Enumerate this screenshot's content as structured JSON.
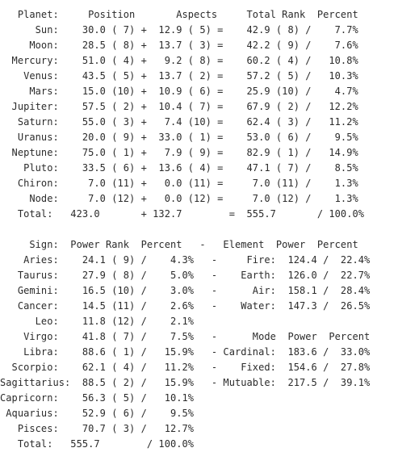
{
  "report": {
    "lines": [
      "   Planet:     Position       Aspects     Total Rank  Percent",
      "      Sun:    30.0 ( 7) +  12.9 ( 5) =    42.9 ( 8) /    7.7%",
      "     Moon:    28.5 ( 8) +  13.7 ( 3) =    42.2 ( 9) /    7.6%",
      "  Mercury:    51.0 ( 4) +   9.2 ( 8) =    60.2 ( 4) /   10.8%",
      "    Venus:    43.5 ( 5) +  13.7 ( 2) =    57.2 ( 5) /   10.3%",
      "     Mars:    15.0 (10) +  10.9 ( 6) =    25.9 (10) /    4.7%",
      "  Jupiter:    57.5 ( 2) +  10.4 ( 7) =    67.9 ( 2) /   12.2%",
      "   Saturn:    55.0 ( 3) +   7.4 (10) =    62.4 ( 3) /   11.2%",
      "   Uranus:    20.0 ( 9) +  33.0 ( 1) =    53.0 ( 6) /    9.5%",
      "  Neptune:    75.0 ( 1) +   7.9 ( 9) =    82.9 ( 1) /   14.9%",
      "    Pluto:    33.5 ( 6) +  13.6 ( 4) =    47.1 ( 7) /    8.5%",
      "   Chiron:     7.0 (11) +   0.0 (11) =     7.0 (11) /    1.3%",
      "     Node:     7.0 (12) +   0.0 (12) =     7.0 (12) /    1.3%",
      "   Total:   423.0       + 132.7        =  555.7       / 100.0%",
      "",
      "     Sign:  Power Rank  Percent   -   Element  Power  Percent",
      "    Aries:    24.1 ( 9) /    4.3%   -     Fire:  124.4 /  22.4%",
      "   Taurus:    27.9 ( 8) /    5.0%   -    Earth:  126.0 /  22.7%",
      "   Gemini:    16.5 (10) /    3.0%   -      Air:  158.1 /  28.4%",
      "   Cancer:    14.5 (11) /    2.6%   -    Water:  147.3 /  26.5%",
      "      Leo:    11.8 (12) /    2.1%",
      "    Virgo:    41.8 ( 7) /    7.5%   -      Mode  Power  Percent",
      "    Libra:    88.6 ( 1) /   15.9%   - Cardinal:  183.6 /  33.0%",
      "  Scorpio:    62.1 ( 4) /   11.2%   -    Fixed:  154.6 /  27.8%",
      "Sagittarius:  88.5 ( 2) /   15.9%   - Mutuable:  217.5 /  39.1%",
      "Capricorn:    56.3 ( 5) /   10.1%",
      " Aquarius:    52.9 ( 6) /    9.5%",
      "   Pisces:    70.7 ( 3) /   12.7%",
      "   Total:   555.7        / 100.0%"
    ]
  }
}
